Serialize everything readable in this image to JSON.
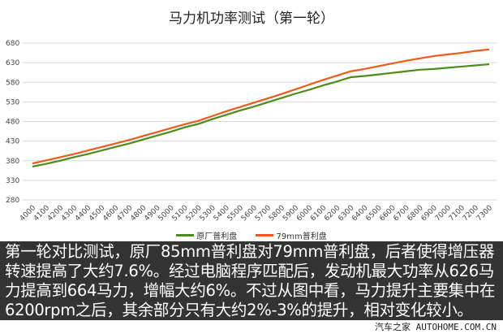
{
  "chart_data": {
    "type": "line",
    "title": "马力机功率测试（第一轮）",
    "xlabel": "",
    "ylabel": "",
    "x": [
      4000,
      4100,
      4200,
      4300,
      4400,
      4500,
      4600,
      4700,
      4800,
      4900,
      5000,
      5100,
      5200,
      5300,
      5400,
      5500,
      5600,
      5700,
      5800,
      5900,
      6000,
      6100,
      6200,
      6300,
      6400,
      6500,
      6600,
      6700,
      6800,
      6900,
      7000,
      7100,
      7200,
      7300
    ],
    "yticks": [
      280,
      330,
      380,
      430,
      480,
      530,
      580,
      630,
      680
    ],
    "ylim": [
      280,
      680
    ],
    "grid": true,
    "legend_position": "bottom",
    "series": [
      {
        "name": "原厂普利盘",
        "color": "#4e8c1a",
        "values": [
          365,
          372,
          380,
          389,
          397,
          406,
          415,
          424,
          434,
          444,
          454,
          465,
          474,
          486,
          497,
          508,
          518,
          529,
          540,
          551,
          561,
          572,
          582,
          593,
          596,
          600,
          604,
          608,
          612,
          614,
          617,
          620,
          623,
          626
        ]
      },
      {
        "name": "79mm普利盘",
        "color": "#f05a1a",
        "values": [
          373,
          381,
          389,
          397,
          406,
          415,
          424,
          433,
          443,
          453,
          463,
          473,
          482,
          494,
          506,
          517,
          528,
          539,
          550,
          562,
          574,
          586,
          597,
          608,
          614,
          621,
          628,
          635,
          641,
          647,
          651,
          655,
          660,
          664
        ]
      }
    ]
  },
  "caption": "第一轮对比测试，原厂85mm普利盘对79mm普利盘，后者使得增压器转速提高了大约7.6%。经过电脑程序匹配后，发动机最大功率从626马力提高到664马力，增幅大约6%。不过从图中看，马力提升主要集中在6200rpm之后，其余部分只有大约2%-3%的提升，相对变化较小。",
  "watermark": "汽车之家 AUTOHOME.COM.CN"
}
